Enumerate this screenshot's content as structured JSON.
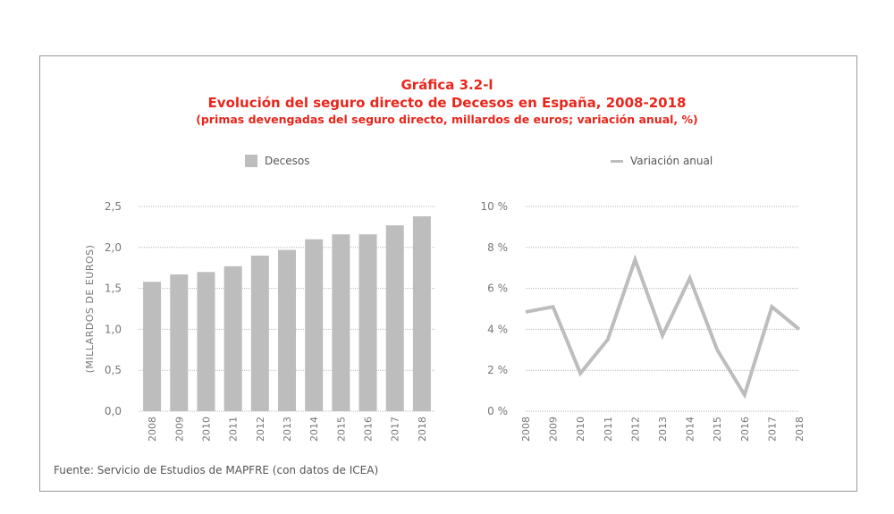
{
  "chart_data": [
    {
      "type": "bar",
      "title": "Gráfica 3.2-l",
      "subtitle": "Evolución del seguro directo de Decesos en España, 2008-2018",
      "note": "(primas devengadas del seguro directo, millardos de euros; variación anual, %)",
      "categories": [
        "2008",
        "2009",
        "2010",
        "2011",
        "2012",
        "2013",
        "2014",
        "2015",
        "2016",
        "2017",
        "2018"
      ],
      "series": [
        {
          "name": "Decesos",
          "values": [
            1.58,
            1.67,
            1.7,
            1.77,
            1.9,
            1.97,
            2.1,
            2.16,
            2.16,
            2.27,
            2.38
          ]
        }
      ],
      "ylabel": "(MILLARDOS DE EUROS)",
      "ylim": [
        0,
        2.5
      ],
      "yticks": [
        "0,0",
        "0,5",
        "1,0",
        "1,5",
        "2,0",
        "2,5"
      ],
      "grid": true,
      "legend": "top",
      "color": "#bdbdbd"
    },
    {
      "type": "line",
      "categories": [
        "2008",
        "2009",
        "2010",
        "2011",
        "2012",
        "2013",
        "2014",
        "2015",
        "2016",
        "2017",
        "2018"
      ],
      "series": [
        {
          "name": "Variación anual",
          "values": [
            4.85,
            5.1,
            1.85,
            3.5,
            7.4,
            3.7,
            6.5,
            3.0,
            0.8,
            5.1,
            4.0
          ]
        }
      ],
      "ylim": [
        0,
        10
      ],
      "yticks": [
        "0 %",
        "2 %",
        "4 %",
        "6 %",
        "8 %",
        "10 %"
      ],
      "grid": true,
      "legend": "top",
      "color": "#bdbdbd"
    }
  ],
  "source": "Fuente: Servicio de Estudios de MAPFRE (con datos de ICEA)"
}
